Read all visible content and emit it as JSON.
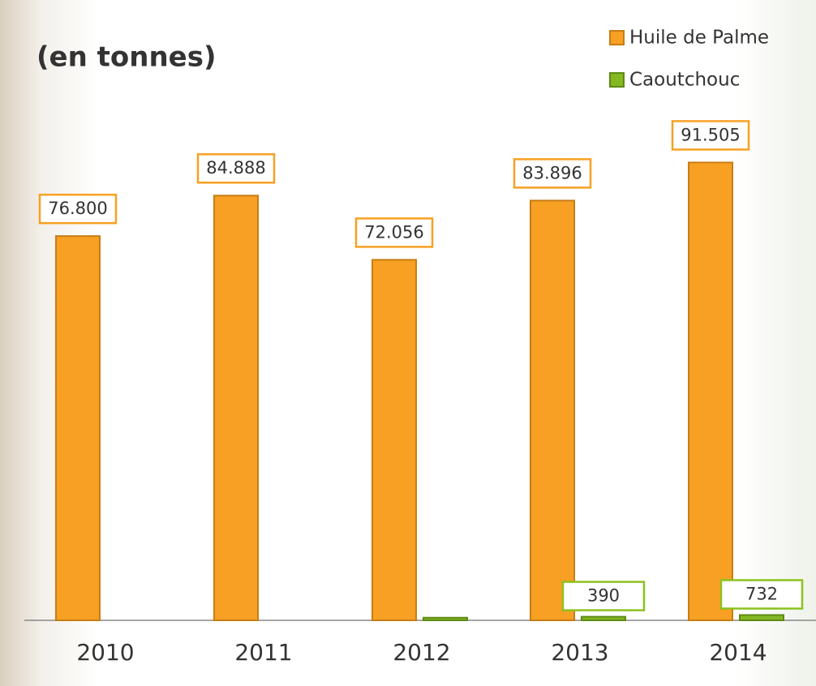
{
  "chart_data": {
    "type": "bar",
    "title": "(en tonnes)",
    "categories": [
      "2010",
      "2011",
      "2012",
      "2013",
      "2014"
    ],
    "series": [
      {
        "name": "Huile de Palme",
        "color": "#f7a023",
        "values": [
          76800,
          84888,
          72056,
          83896,
          91505
        ],
        "value_labels": [
          "76.800",
          "84.888",
          "72.056",
          "83.896",
          "91.505"
        ]
      },
      {
        "name": "Caoutchouc",
        "color": "#84b823",
        "values": [
          null,
          null,
          200,
          390,
          732
        ],
        "value_labels": [
          null,
          null,
          null,
          "390",
          "732"
        ]
      }
    ],
    "ylim": [
      0,
      100000
    ],
    "grid": false,
    "legend": "top-right"
  }
}
